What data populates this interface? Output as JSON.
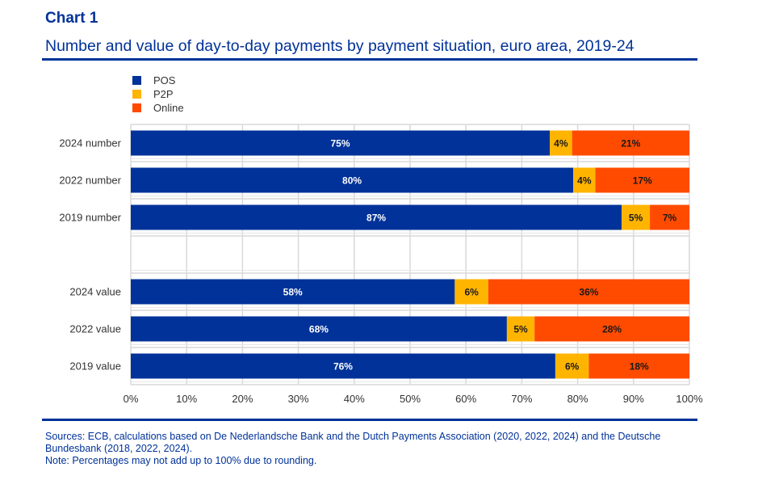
{
  "header": {
    "chart_number": "Chart 1",
    "title": "Number and value of day-to-day payments by payment situation, euro area, 2019-24"
  },
  "footer": {
    "sources": "Sources: ECB, calculations based on De Nederlandsche Bank and the Dutch Payments Association (2020, 2022, 2024) and the Deutsche Bundesbank (2018, 2022, 2024).",
    "note": "Note: Percentages may not add up to 100% due to rounding."
  },
  "colors": {
    "brand": "#003299",
    "POS": "#003299",
    "P2P": "#FFB400",
    "Online": "#FF4B00",
    "grid": "#d9d9d9"
  },
  "chart_data": {
    "type": "bar",
    "orientation": "horizontal",
    "stacked": true,
    "normalized": true,
    "title": "Number and value of day-to-day payments by payment situation, euro area, 2019-24",
    "xlabel": "",
    "ylabel": "",
    "xlim": [
      0,
      100
    ],
    "x_ticks": [
      "0%",
      "10%",
      "20%",
      "30%",
      "40%",
      "50%",
      "60%",
      "70%",
      "80%",
      "90%",
      "100%"
    ],
    "grid": true,
    "legend_position": "top-left",
    "categories": [
      "2024 number",
      "2022 number",
      "2019 number",
      "",
      "2024 value",
      "2022 value",
      "2019 value"
    ],
    "series": [
      {
        "name": "POS",
        "values": [
          75,
          80,
          87,
          null,
          58,
          68,
          76
        ],
        "labels": [
          "75%",
          "80%",
          "87%",
          "",
          "58%",
          "68%",
          "76%"
        ]
      },
      {
        "name": "P2P",
        "values": [
          4,
          4,
          5,
          null,
          6,
          5,
          6
        ],
        "labels": [
          "4%",
          "4%",
          "5%",
          "",
          "6%",
          "5%",
          "6%"
        ]
      },
      {
        "name": "Online",
        "values": [
          21,
          17,
          7,
          null,
          36,
          28,
          18
        ],
        "labels": [
          "21%",
          "17%",
          "7%",
          "",
          "36%",
          "28%",
          "18%"
        ]
      }
    ]
  }
}
